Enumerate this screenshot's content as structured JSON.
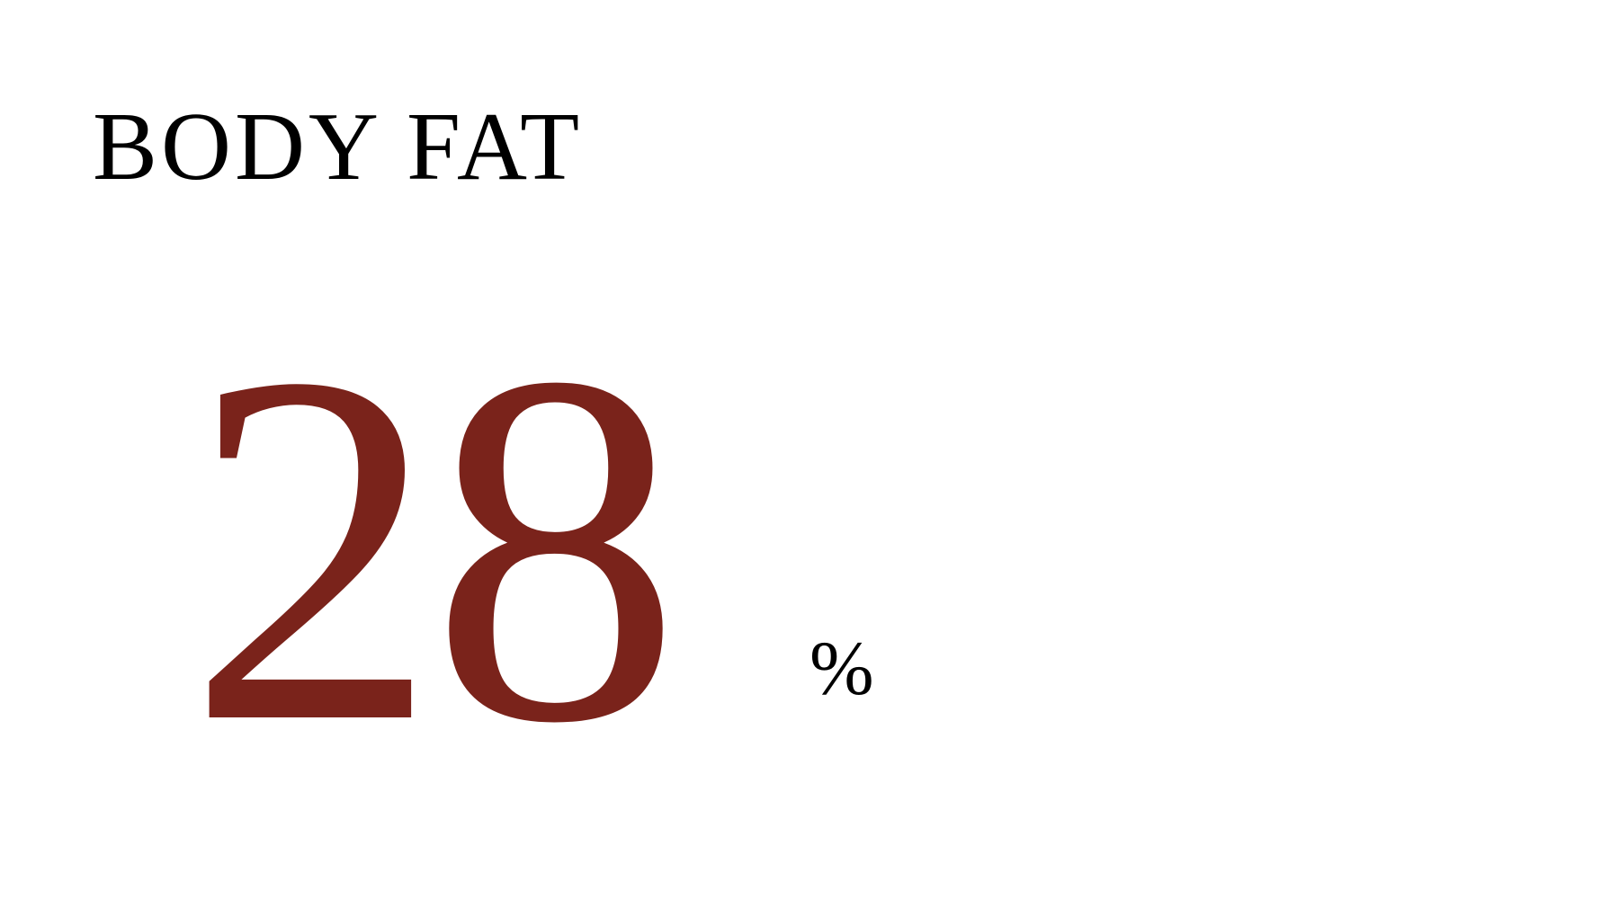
{
  "metric": {
    "label": "BODY FAT",
    "value": "28",
    "unit": "%",
    "value_color": "#7a231b",
    "text_color": "#000000"
  }
}
